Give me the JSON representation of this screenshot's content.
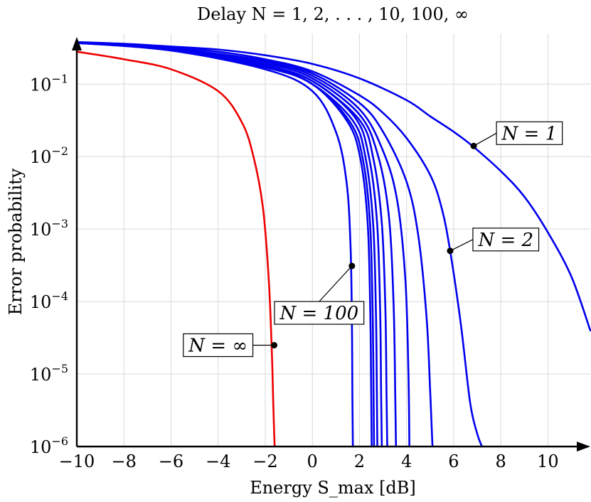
{
  "chart_data": {
    "type": "line",
    "title": "Delay N = 1, 2, . . . , 10, 100, ∞",
    "xlabel": "Energy S_max [dB]",
    "ylabel": "Error probability",
    "xlim": [
      -10,
      11.8
    ],
    "ylim": [
      1e-06,
      0.5
    ],
    "yscale": "log",
    "grid": true,
    "x_ticks": [
      -10,
      -8,
      -6,
      -4,
      -2,
      0,
      2,
      4,
      6,
      8,
      10
    ],
    "x_tick_labels": [
      "−10",
      "−8",
      "−6",
      "−4",
      "−2",
      "0",
      "2",
      "4",
      "6",
      "8",
      "10"
    ],
    "y_ticks": [
      1e-06,
      1e-05,
      0.0001,
      0.001,
      0.01,
      0.1
    ],
    "y_tick_labels": [
      {
        "base": "10",
        "exp": "−6"
      },
      {
        "base": "10",
        "exp": "−5"
      },
      {
        "base": "10",
        "exp": "−4"
      },
      {
        "base": "10",
        "exp": "−3"
      },
      {
        "base": "10",
        "exp": "−2"
      },
      {
        "base": "10",
        "exp": "−1"
      }
    ],
    "colors": {
      "finite": "#0000ee",
      "infinite": "#ee0000"
    },
    "series": [
      {
        "N": 1,
        "color": "#0000ee",
        "x": [
          -10,
          -8,
          -6,
          -4,
          -2,
          0,
          2,
          4,
          5,
          6,
          6.8,
          8,
          9,
          10,
          11,
          11.8
        ],
        "y": [
          0.38,
          0.36,
          0.33,
          0.3,
          0.25,
          0.19,
          0.12,
          0.06,
          0.036,
          0.022,
          0.014,
          0.0063,
          0.0028,
          0.0009,
          0.00022,
          4e-05
        ]
      },
      {
        "N": 2,
        "color": "#0000ee",
        "x": [
          -10,
          -8,
          -6,
          -4,
          -2,
          0,
          2,
          3,
          4,
          5,
          5.5,
          5.85,
          6.3,
          6.7,
          7.0,
          7.2
        ],
        "y": [
          0.37,
          0.35,
          0.32,
          0.28,
          0.22,
          0.15,
          0.07,
          0.04,
          0.018,
          0.0056,
          0.0019,
          0.0005,
          5e-05,
          4e-06,
          1.5e-06,
          1e-06
        ]
      },
      {
        "N": 3,
        "color": "#0000ee",
        "x": [
          -10,
          -6,
          -2,
          0,
          2,
          3,
          4,
          4.5,
          4.85,
          5.0,
          5.1
        ],
        "y": [
          0.37,
          0.31,
          0.21,
          0.14,
          0.055,
          0.022,
          0.0045,
          0.0008,
          6e-05,
          6e-06,
          1e-06
        ]
      },
      {
        "N": 4,
        "color": "#0000ee",
        "x": [
          -10,
          -6,
          -2,
          0,
          2,
          3,
          3.6,
          3.95,
          4.08,
          4.12
        ],
        "y": [
          0.37,
          0.31,
          0.2,
          0.13,
          0.045,
          0.012,
          0.0025,
          0.0002,
          1e-05,
          1e-06
        ]
      },
      {
        "N": 5,
        "color": "#0000ee",
        "x": [
          -10,
          -6,
          -2,
          0,
          2,
          2.8,
          3.25,
          3.45,
          3.52,
          3.55
        ],
        "y": [
          0.37,
          0.3,
          0.19,
          0.12,
          0.038,
          0.01,
          0.0015,
          9e-05,
          5e-06,
          1e-06
        ]
      },
      {
        "N": 6,
        "color": "#0000ee",
        "x": [
          -10,
          -6,
          -2,
          0,
          2,
          2.6,
          2.95,
          3.1,
          3.15,
          3.18
        ],
        "y": [
          0.37,
          0.3,
          0.18,
          0.11,
          0.032,
          0.009,
          0.0012,
          8e-05,
          5e-06,
          1e-06
        ]
      },
      {
        "N": 7,
        "color": "#0000ee",
        "x": [
          -10,
          -6,
          -2,
          0,
          1.8,
          2.4,
          2.75,
          2.88,
          2.92,
          2.95
        ],
        "y": [
          0.37,
          0.3,
          0.18,
          0.11,
          0.035,
          0.01,
          0.0012,
          7e-05,
          5e-06,
          1e-06
        ]
      },
      {
        "N": 8,
        "color": "#0000ee",
        "x": [
          -10,
          -6,
          -2,
          0,
          1.7,
          2.25,
          2.58,
          2.7,
          2.74,
          2.76
        ],
        "y": [
          0.37,
          0.3,
          0.18,
          0.1,
          0.032,
          0.01,
          0.0012,
          7e-05,
          5e-06,
          1e-06
        ]
      },
      {
        "N": 9,
        "color": "#0000ee",
        "x": [
          -10,
          -6,
          -2,
          0,
          1.6,
          2.15,
          2.45,
          2.56,
          2.6,
          2.62
        ],
        "y": [
          0.37,
          0.3,
          0.17,
          0.1,
          0.03,
          0.009,
          0.0012,
          7e-05,
          5e-06,
          1e-06
        ]
      },
      {
        "N": 10,
        "color": "#0000ee",
        "x": [
          -10,
          -6,
          -2,
          0,
          1.5,
          2.05,
          2.35,
          2.46,
          2.5,
          2.52
        ],
        "y": [
          0.37,
          0.3,
          0.17,
          0.1,
          0.03,
          0.009,
          0.0012,
          7e-05,
          5e-06,
          1e-06
        ]
      },
      {
        "N": 100,
        "color": "#0000ee",
        "x": [
          -10,
          -6,
          -2,
          0,
          1.0,
          1.45,
          1.62,
          1.68,
          1.7,
          1.72
        ],
        "y": [
          0.37,
          0.29,
          0.16,
          0.08,
          0.022,
          0.0045,
          0.0006,
          5e-05,
          5e-06,
          1e-06
        ]
      },
      {
        "N": "∞",
        "color": "#ee0000",
        "x": [
          -10,
          -8,
          -6,
          -4,
          -3,
          -2.5,
          -2.1,
          -1.85,
          -1.72,
          -1.66,
          -1.62,
          -1.6
        ],
        "y": [
          0.28,
          0.22,
          0.16,
          0.08,
          0.03,
          0.01,
          0.002,
          0.0002,
          2e-05,
          4e-06,
          1.5e-06,
          1e-06
        ]
      }
    ],
    "annotations": [
      {
        "text": "N = 1",
        "x": 6.85,
        "y": 0.014
      },
      {
        "text": "N = 2",
        "x": 5.85,
        "y": 0.0005
      },
      {
        "text": "N = 100",
        "x": 1.68,
        "y": 0.00031
      },
      {
        "text": "N = ∞",
        "x": -1.62,
        "y": 2.5e-05
      }
    ]
  }
}
